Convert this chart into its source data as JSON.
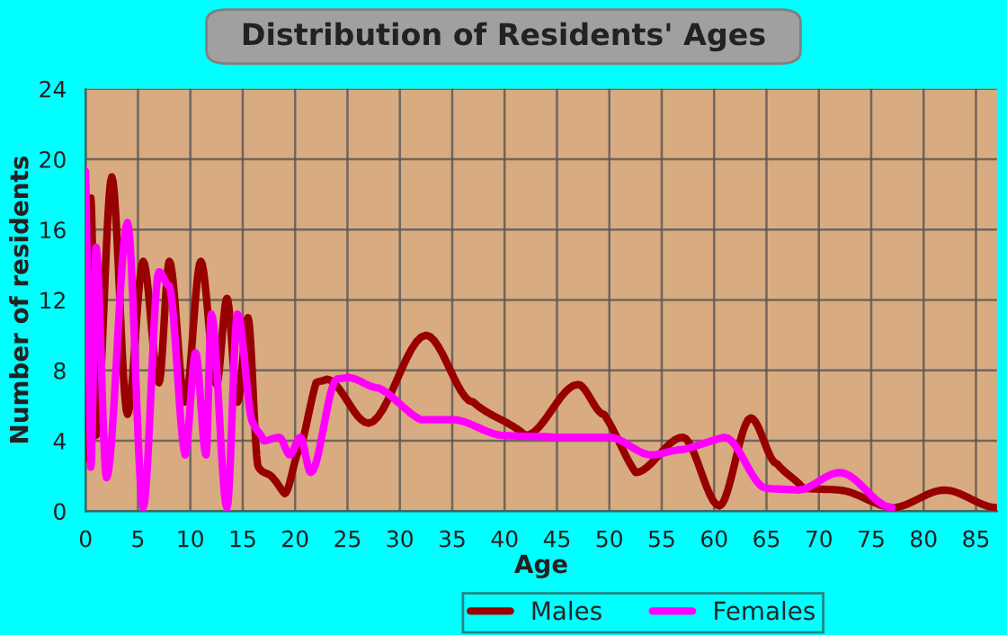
{
  "chart_data": {
    "type": "line",
    "title": "Distribution of Residents' Ages",
    "xlabel": "Age",
    "ylabel": "Number of residents",
    "xlim": [
      0,
      87
    ],
    "xticks": [
      0,
      5,
      10,
      15,
      20,
      25,
      30,
      35,
      40,
      45,
      50,
      55,
      60,
      65,
      70,
      75,
      80,
      85
    ],
    "ylim": [
      0,
      24
    ],
    "yticks": [
      0,
      4,
      8,
      12,
      16,
      20,
      24
    ],
    "grid": true,
    "legend": "bottom",
    "series": [
      {
        "name": "Males",
        "color": "#990000",
        "x": [
          0,
          0.5,
          1,
          2.5,
          4,
          5.5,
          7,
          8,
          9.5,
          11,
          12.5,
          13.5,
          14.5,
          15.5,
          16.5,
          18,
          19,
          20.5,
          22,
          23,
          27,
          32.5,
          37,
          42,
          47,
          49.5,
          52.5,
          57,
          60.5,
          63.5,
          66,
          68.5,
          72,
          77,
          82,
          87
        ],
        "values": [
          3,
          17.8,
          4.3,
          19,
          5.5,
          14.2,
          7.3,
          14.2,
          6.2,
          14.2,
          7.2,
          12.1,
          6.2,
          11,
          2.5,
          1.8,
          1,
          3.5,
          7.3,
          7.5,
          5,
          10,
          6.2,
          4.3,
          7.2,
          5.5,
          2.2,
          4.2,
          0.3,
          5.3,
          2.7,
          1.3,
          1.2,
          0.2,
          1.2,
          0.2
        ]
      },
      {
        "name": "Females",
        "color": "#ff00ff",
        "x": [
          0,
          0.5,
          1,
          2,
          4,
          5.5,
          7,
          8,
          9.5,
          10.5,
          11.5,
          12,
          13.5,
          14.5,
          16,
          17,
          18.5,
          19.5,
          20.5,
          21.5,
          24,
          25,
          28,
          32,
          35,
          40,
          45,
          50,
          54,
          57,
          61,
          65,
          68,
          72,
          77
        ],
        "values": [
          19.3,
          2.5,
          15,
          1.9,
          16.4,
          0.2,
          13.6,
          12.8,
          3.2,
          9,
          3.2,
          11.2,
          0.2,
          11.2,
          5,
          4,
          4.2,
          3.2,
          4.2,
          2.2,
          7.5,
          7.6,
          7,
          5.2,
          5.2,
          4.3,
          4.2,
          4.2,
          3.2,
          3.5,
          4.2,
          1.3,
          1.2,
          2.2,
          0.2
        ]
      }
    ]
  }
}
